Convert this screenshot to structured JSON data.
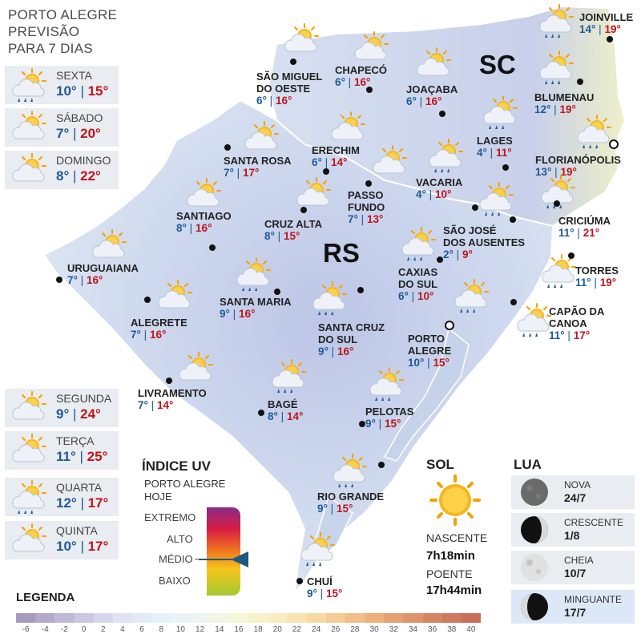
{
  "header": {
    "line1": "PORTO ALEGRE",
    "line2": "PREVISÃO",
    "line3": "PARA 7 DIAS"
  },
  "forecast": [
    {
      "day": "SEXTA",
      "min": "10°",
      "max": "15°",
      "icon": "sun-cloud-rain-icon"
    },
    {
      "day": "SÁBADO",
      "min": "7°",
      "max": "20°",
      "icon": "sun-cloud-icon"
    },
    {
      "day": "DOMINGO",
      "min": "8°",
      "max": "22°",
      "icon": "sun-cloud-icon"
    },
    {
      "day": "SEGUNDA",
      "min": "9°",
      "max": "24°",
      "icon": "sun-cloud-icon"
    },
    {
      "day": "TERÇA",
      "min": "11°",
      "max": "25°",
      "icon": "sun-cloud-icon"
    },
    {
      "day": "QUARTA",
      "min": "12°",
      "max": "17°",
      "icon": "sun-cloud-rain-icon"
    },
    {
      "day": "QUINTA",
      "min": "10°",
      "max": "17°",
      "icon": "sun-cloud-icon"
    }
  ],
  "states": {
    "sc": "SC",
    "rs": "RS"
  },
  "cities": [
    {
      "name1": "JOINVILLE",
      "name2": "",
      "min": "14°",
      "max": "19°",
      "icon": "sun-cloud-rain-icon"
    },
    {
      "name1": "BLUMENAU",
      "name2": "",
      "min": "12°",
      "max": "19°",
      "icon": "sun-cloud-rain-icon"
    },
    {
      "name1": "FLORIANÓPOLIS",
      "name2": "",
      "min": "13°",
      "max": "19°",
      "icon": "sun-cloud-rain-icon"
    },
    {
      "name1": "CRICIÚMA",
      "name2": "",
      "min": "11°",
      "max": "21°",
      "icon": "sun-cloud-rain-icon"
    },
    {
      "name1": "TORRES",
      "name2": "",
      "min": "11°",
      "max": "19°",
      "icon": "sun-cloud-rain-icon"
    },
    {
      "name1": "CAPÃO DA",
      "name2": "CANOA",
      "min": "11°",
      "max": "17°",
      "icon": "sun-cloud-rain-icon"
    },
    {
      "name1": "SÃO MIGUEL",
      "name2": "DO OESTE",
      "min": "6°",
      "max": "16°",
      "icon": "sun-cloud-icon"
    },
    {
      "name1": "CHAPECÓ",
      "name2": "",
      "min": "6°",
      "max": "16°",
      "icon": "sun-cloud-icon"
    },
    {
      "name1": "JOAÇABA",
      "name2": "",
      "min": "6°",
      "max": "16°",
      "icon": "sun-cloud-icon"
    },
    {
      "name1": "LAGES",
      "name2": "",
      "min": "4°",
      "max": "11°",
      "icon": "sun-cloud-rain-icon"
    },
    {
      "name1": "SANTA ROSA",
      "name2": "",
      "min": "7°",
      "max": "17°",
      "icon": "sun-cloud-icon"
    },
    {
      "name1": "ERECHIM",
      "name2": "",
      "min": "6°",
      "max": "14°",
      "icon": "sun-cloud-icon"
    },
    {
      "name1": "VACARIA",
      "name2": "",
      "min": "4°",
      "max": "10°",
      "icon": "sun-cloud-rain-icon"
    },
    {
      "name1": "SANTIAGO",
      "name2": "",
      "min": "8°",
      "max": "16°",
      "icon": "sun-cloud-icon"
    },
    {
      "name1": "PASSO",
      "name2": "FUNDO",
      "min": "7°",
      "max": "13°",
      "icon": "sun-cloud-icon"
    },
    {
      "name1": "CRUZ ALTA",
      "name2": "",
      "min": "8°",
      "max": "15°",
      "icon": "sun-cloud-icon"
    },
    {
      "name1": "SÃO JOSÉ",
      "name2": "DOS AUSENTES",
      "min": "2°",
      "max": "9°",
      "icon": "sun-cloud-rain-icon"
    },
    {
      "name1": "URUGUAIANA",
      "name2": "",
      "min": "7°",
      "max": "16°",
      "icon": "sun-cloud-icon"
    },
    {
      "name1": "CAXIAS",
      "name2": "DO SUL",
      "min": "6°",
      "max": "10°",
      "icon": "sun-cloud-rain-icon"
    },
    {
      "name1": "SANTA MARIA",
      "name2": "",
      "min": "9°",
      "max": "16°",
      "icon": "sun-cloud-rain-icon"
    },
    {
      "name1": "ALEGRETE",
      "name2": "",
      "min": "7°",
      "max": "16°",
      "icon": "sun-cloud-icon"
    },
    {
      "name1": "SANTA CRUZ",
      "name2": "DO SUL",
      "min": "9°",
      "max": "16°",
      "icon": "sun-cloud-rain-icon"
    },
    {
      "name1": "PORTO",
      "name2": "ALEGRE",
      "min": "10°",
      "max": "15°",
      "icon": "sun-cloud-rain-icon"
    },
    {
      "name1": "LIVRAMENTO",
      "name2": "",
      "min": "7°",
      "max": "14°",
      "icon": "sun-cloud-icon"
    },
    {
      "name1": "BAGÉ",
      "name2": "",
      "min": "8°",
      "max": "14°",
      "icon": "sun-cloud-rain-icon"
    },
    {
      "name1": "PELOTAS",
      "name2": "",
      "min": "9°",
      "max": "15°",
      "icon": "sun-cloud-rain-icon"
    },
    {
      "name1": "RIO GRANDE",
      "name2": "",
      "min": "9°",
      "max": "15°",
      "icon": "sun-cloud-rain-icon"
    },
    {
      "name1": "CHUÍ",
      "name2": "",
      "min": "9°",
      "max": "15°",
      "icon": "sun-cloud-rain-icon"
    }
  ],
  "uv": {
    "title": "ÍNDICE UV",
    "sub1": "PORTO ALEGRE",
    "sub2": "HOJE",
    "levels": [
      "EXTREMO",
      "ALTO",
      "MÉDIO",
      "BAIXO"
    ],
    "current": "MÉDIO"
  },
  "sun": {
    "title": "SOL",
    "rise_label": "NASCENTE",
    "rise": "7h18min",
    "set_label": "POENTE",
    "set": "17h44min"
  },
  "moon": {
    "title": "LUA",
    "phases": [
      {
        "name": "NOVA",
        "date": "24/7",
        "icon": "new-moon-icon"
      },
      {
        "name": "CRESCENTE",
        "date": "1/8",
        "icon": "waxing-moon-icon"
      },
      {
        "name": "CHEIA",
        "date": "10/7",
        "icon": "full-moon-icon"
      },
      {
        "name": "MINGUANTE",
        "date": "17/7",
        "icon": "waning-moon-icon"
      }
    ]
  },
  "legend": {
    "title": "LEGENDA",
    "ticks": [
      "-6",
      "-4",
      "-2",
      "0",
      "2",
      "4",
      "6",
      "8",
      "10",
      "12",
      "14",
      "16",
      "18",
      "20",
      "22",
      "24",
      "26",
      "28",
      "30",
      "32",
      "34",
      "36",
      "38",
      "40"
    ],
    "colors": [
      "#a59bbd",
      "#b2a9cb",
      "#bfb8d8",
      "#cdc8e2",
      "#d6d7ec",
      "#dfe3f2",
      "#e2ebf5",
      "#e6f0f7",
      "#eaf3f6",
      "#eef5f0",
      "#f1f6e4",
      "#f6f6d9",
      "#f8f2cc",
      "#f9ecc1",
      "#f9e3b2",
      "#f7d9a4",
      "#f4cc95",
      "#f0bf88",
      "#ebb07c",
      "#e5a173",
      "#de936b",
      "#d68564",
      "#cf795f",
      "#c86e5a"
    ]
  },
  "colors": {
    "min": "#1e5a99",
    "max": "#c0141b"
  }
}
